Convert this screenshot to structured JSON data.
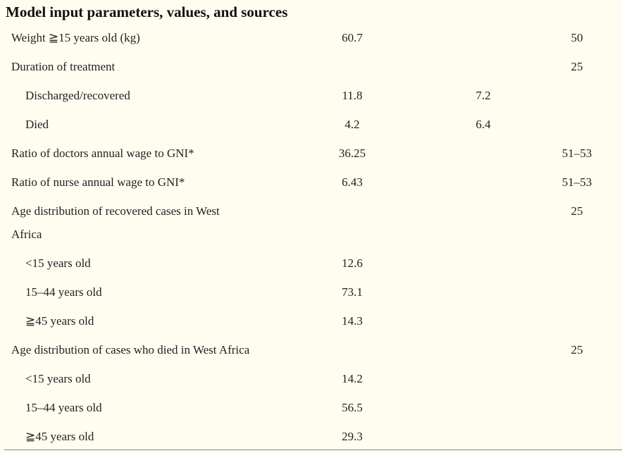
{
  "table": {
    "title": "Model input parameters, values, and sources",
    "rows": [
      {
        "label": "Weight ≧15 years old (kg)",
        "c1": "60.7",
        "c2": "",
        "c3": "50"
      },
      {
        "label": "Duration of treatment",
        "c1": "",
        "c2": "",
        "c3": "25"
      },
      {
        "label": "Discharged/recovered",
        "c1": "11.8",
        "c2": "7.2",
        "c3": ""
      },
      {
        "label": "Died",
        "c1": "4.2",
        "c2": "6.4",
        "c3": ""
      },
      {
        "label": "Ratio of doctors annual wage to GNI*",
        "c1": "36.25",
        "c2": "",
        "c3": "51–53"
      },
      {
        "label": "Ratio of nurse annual wage to GNI*",
        "c1": "6.43",
        "c2": "",
        "c3": "51–53"
      },
      {
        "label": "Age distribution of recovered cases in West",
        "c1": "",
        "c2": "",
        "c3": "25"
      },
      {
        "label": "Africa",
        "c1": "",
        "c2": "",
        "c3": ""
      },
      {
        "label": "<15 years old",
        "c1": "12.6",
        "c2": "",
        "c3": ""
      },
      {
        "label": "15–44 years old",
        "c1": "73.1",
        "c2": "",
        "c3": ""
      },
      {
        "label": "≧45 years old",
        "c1": "14.3",
        "c2": "",
        "c3": ""
      },
      {
        "label": "Age distribution of cases who died in West Africa",
        "c1": "",
        "c2": "",
        "c3": "25"
      },
      {
        "label": "<15 years old",
        "c1": "14.2",
        "c2": "",
        "c3": ""
      },
      {
        "label": "15–44 years old",
        "c1": "56.5",
        "c2": "",
        "c3": ""
      },
      {
        "label": "≧45 years old",
        "c1": "29.3",
        "c2": "",
        "c3": ""
      }
    ]
  }
}
